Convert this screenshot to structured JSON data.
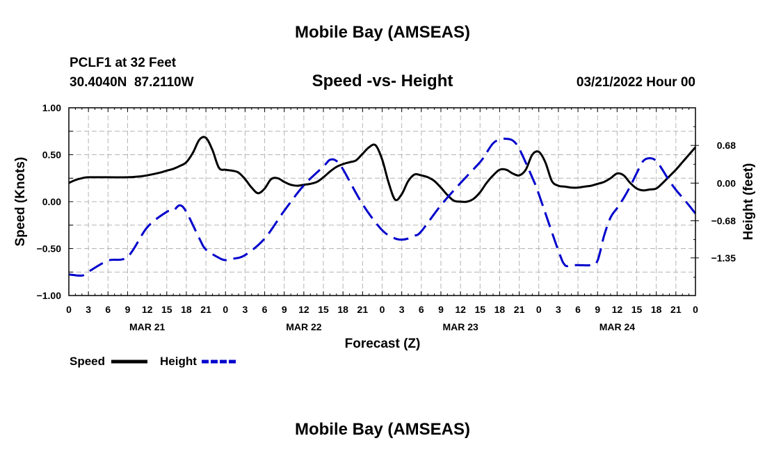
{
  "page": {
    "top_title": "Mobile Bay (AMSEAS)",
    "bottom_title": "Mobile Bay (AMSEAS)",
    "station_line1": "PCLF1 at 32 Feet",
    "station_line2": "30.4040N  87.2110W",
    "datetime": "03/21/2022 Hour 00"
  },
  "chart_data": {
    "type": "line",
    "title": "Speed -vs- Height",
    "xlabel": "Forecast (Z)",
    "ylabel_left": "Speed (Knots)",
    "ylabel_right": "Height (feet)",
    "x_range_hours": [
      0,
      96
    ],
    "ylim_left": [
      -1.0,
      1.0
    ],
    "ylim_right": [
      -2.03,
      1.36
    ],
    "yticks_left": [
      -1.0,
      -0.5,
      0.0,
      0.5,
      1.0
    ],
    "yticks_left_labels": [
      "−1.00",
      "−0.50",
      "0.00",
      "0.50",
      "1.00"
    ],
    "yticks_right": [
      -1.35,
      -0.68,
      0.0,
      0.68
    ],
    "yticks_right_labels": [
      "−1.35",
      "−0.68",
      "0.00",
      "0.68"
    ],
    "x_tick_labels": [
      "0",
      "3",
      "6",
      "9",
      "12",
      "15",
      "18",
      "21",
      "0",
      "3",
      "6",
      "9",
      "12",
      "15",
      "18",
      "21",
      "0",
      "3",
      "6",
      "9",
      "12",
      "15",
      "18",
      "21",
      "0",
      "3",
      "6",
      "9",
      "12",
      "15",
      "18",
      "21",
      "0"
    ],
    "day_labels": [
      {
        "label": "MAR 21",
        "hour": 12
      },
      {
        "label": "MAR 22",
        "hour": 36
      },
      {
        "label": "MAR 23",
        "hour": 60
      },
      {
        "label": "MAR 24",
        "hour": 84
      }
    ],
    "grid": true,
    "legend_position": "bottom-left",
    "series": [
      {
        "name": "Speed",
        "axis": "left",
        "color": "#000000",
        "style": "solid",
        "x": [
          0,
          1,
          2,
          3,
          6,
          9,
          11,
          12,
          14,
          15,
          16,
          17,
          18,
          19,
          20,
          21,
          22,
          23,
          24,
          25,
          26,
          27,
          28,
          29,
          30,
          31,
          32,
          33,
          34,
          35,
          36,
          37,
          38,
          39,
          40,
          41,
          42,
          43,
          44,
          45,
          46,
          47,
          48,
          49,
          50,
          51,
          52,
          53,
          54,
          55,
          56,
          57,
          58,
          59,
          60,
          61,
          62,
          63,
          64,
          65,
          66,
          67,
          68,
          69,
          70,
          71,
          72,
          73,
          74,
          75,
          76,
          77,
          78,
          79,
          80,
          81,
          82,
          83,
          84,
          85,
          86,
          87,
          88,
          89,
          90,
          91,
          92,
          93,
          94,
          95,
          96
        ],
        "y": [
          0.2,
          0.23,
          0.25,
          0.26,
          0.26,
          0.26,
          0.27,
          0.28,
          0.31,
          0.33,
          0.35,
          0.38,
          0.42,
          0.52,
          0.66,
          0.68,
          0.55,
          0.36,
          0.34,
          0.33,
          0.31,
          0.24,
          0.15,
          0.09,
          0.14,
          0.24,
          0.25,
          0.21,
          0.18,
          0.17,
          0.18,
          0.19,
          0.21,
          0.26,
          0.32,
          0.37,
          0.4,
          0.42,
          0.44,
          0.51,
          0.58,
          0.6,
          0.45,
          0.2,
          0.02,
          0.08,
          0.22,
          0.29,
          0.28,
          0.26,
          0.22,
          0.15,
          0.07,
          0.01,
          0.0,
          0.0,
          0.03,
          0.1,
          0.2,
          0.28,
          0.34,
          0.34,
          0.3,
          0.28,
          0.34,
          0.5,
          0.53,
          0.42,
          0.22,
          0.17,
          0.16,
          0.15,
          0.15,
          0.16,
          0.17,
          0.19,
          0.21,
          0.25,
          0.3,
          0.28,
          0.2,
          0.14,
          0.12,
          0.13,
          0.14,
          0.2,
          0.27,
          0.34,
          0.42,
          0.5,
          0.58
        ]
      },
      {
        "name": "Height",
        "axis": "right",
        "color": "#0000cc",
        "style": "dashed",
        "x": [
          0,
          2,
          3,
          6,
          9,
          12,
          15,
          16,
          17,
          18,
          20,
          21,
          23,
          24,
          25,
          27,
          30,
          33,
          36,
          39,
          40,
          41,
          42,
          45,
          48,
          50,
          51,
          52,
          53,
          54,
          57,
          60,
          63,
          64,
          65,
          66,
          67,
          68,
          69,
          71,
          72,
          75,
          76,
          77,
          78,
          80,
          81,
          82,
          83,
          84,
          85,
          86,
          87,
          88,
          89,
          90,
          91,
          92,
          93,
          94,
          95,
          96
        ],
        "y": [
          -1.65,
          -1.67,
          -1.6,
          -1.4,
          -1.33,
          -0.8,
          -0.52,
          -0.5,
          -0.4,
          -0.52,
          -1.0,
          -1.2,
          -1.35,
          -1.39,
          -1.37,
          -1.3,
          -1.0,
          -0.5,
          -0.04,
          0.3,
          0.42,
          0.4,
          0.25,
          -0.38,
          -0.85,
          -1.0,
          -1.02,
          -1.0,
          -0.95,
          -0.87,
          -0.4,
          0.0,
          0.38,
          0.55,
          0.72,
          0.79,
          0.8,
          0.77,
          0.62,
          0.1,
          -0.2,
          -1.22,
          -1.48,
          -1.48,
          -1.48,
          -1.48,
          -1.4,
          -0.95,
          -0.62,
          -0.45,
          -0.27,
          -0.06,
          0.18,
          0.4,
          0.45,
          0.4,
          0.23,
          0.04,
          -0.12,
          -0.26,
          -0.4,
          -0.55
        ]
      }
    ]
  }
}
